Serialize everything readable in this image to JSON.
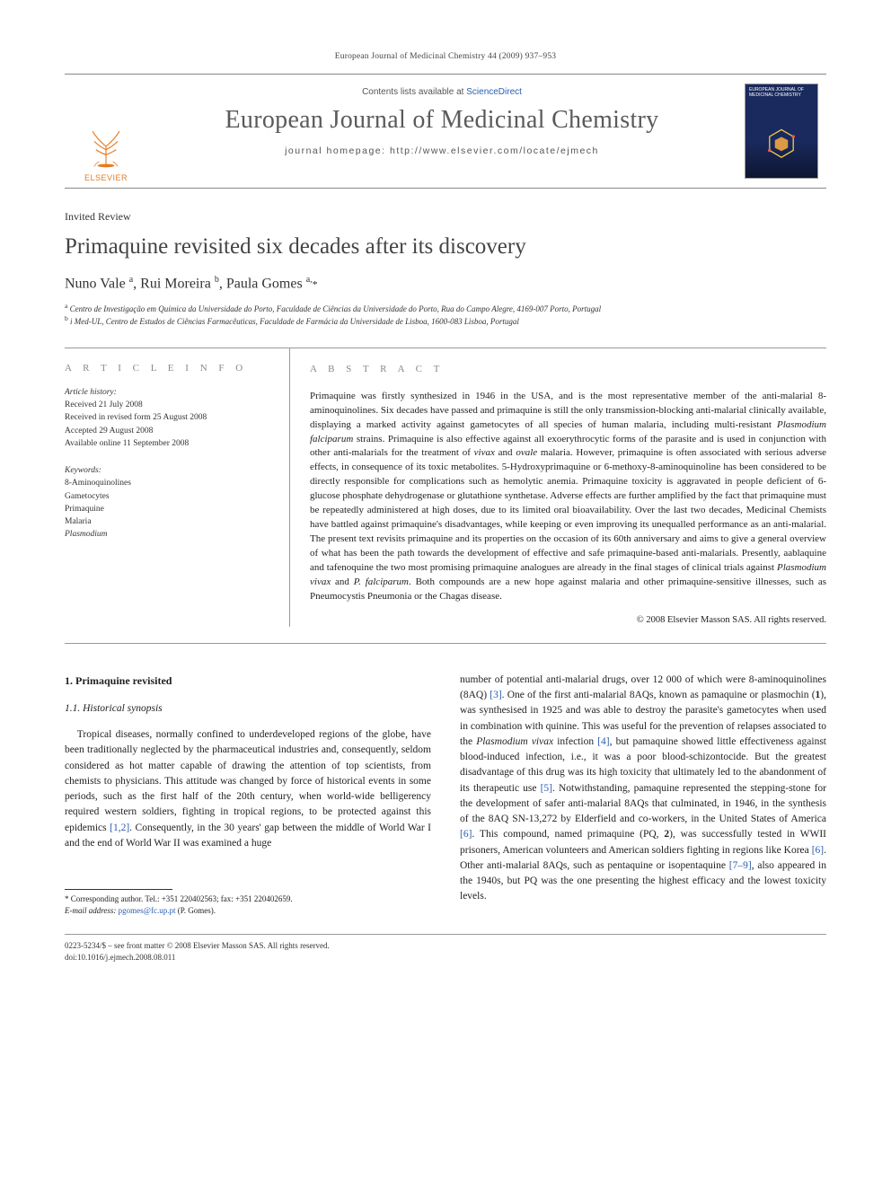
{
  "header": {
    "citation": "European Journal of Medicinal Chemistry 44 (2009) 937–953"
  },
  "masthead": {
    "publisher_label": "ELSEVIER",
    "contents_prefix": "Contents lists available at ",
    "contents_link": "ScienceDirect",
    "journal_name": "European Journal of Medicinal Chemistry",
    "homepage_prefix": "journal homepage: ",
    "homepage_url": "http://www.elsevier.com/locate/ejmech",
    "cover_caption_top": "EUROPEAN JOURNAL OF",
    "cover_caption_bottom": "MEDICINAL CHEMISTRY"
  },
  "article": {
    "type": "Invited Review",
    "title": "Primaquine revisited six decades after its discovery",
    "authors_html": "Nuno Vale <sup>a</sup>, Rui Moreira <sup>b</sup>, Paula Gomes <sup>a,</sup><span class='corr'>*</span>",
    "affiliations": [
      "Centro de Investigação em Química da Universidade do Porto, Faculdade de Ciências da Universidade do Porto, Rua do Campo Alegre, 4169-007 Porto, Portugal",
      "i Med-UL, Centro de Estudos de Ciências Farmacêuticas, Faculdade de Farmácia da Universidade de Lisboa, 1600-083 Lisboa, Portugal"
    ],
    "aff_markers": [
      "a",
      "b"
    ]
  },
  "info": {
    "heading": "A R T I C L E   I N F O",
    "history_label": "Article history:",
    "history": [
      "Received 21 July 2008",
      "Received in revised form 25 August 2008",
      "Accepted 29 August 2008",
      "Available online 11 September 2008"
    ],
    "keywords_label": "Keywords:",
    "keywords": [
      "8-Aminoquinolines",
      "Gametocytes",
      "Primaquine",
      "Malaria",
      "Plasmodium"
    ]
  },
  "abstract": {
    "heading": "A B S T R A C T",
    "text": "Primaquine was firstly synthesized in 1946 in the USA, and is the most representative member of the anti-malarial 8-aminoquinolines. Six decades have passed and primaquine is still the only transmission-blocking anti-malarial clinically available, displaying a marked activity against gametocytes of all species of human malaria, including multi-resistant Plasmodium falciparum strains. Primaquine is also effective against all exoerythrocytic forms of the parasite and is used in conjunction with other anti-malarials for the treatment of vivax and ovale malaria. However, primaquine is often associated with serious adverse effects, in consequence of its toxic metabolites. 5-Hydroxyprimaquine or 6-methoxy-8-aminoquinoline has been considered to be directly responsible for complications such as hemolytic anemia. Primaquine toxicity is aggravated in people deficient of 6-glucose phosphate dehydrogenase or glutathione synthetase. Adverse effects are further amplified by the fact that primaquine must be repeatedly administered at high doses, due to its limited oral bioavailability. Over the last two decades, Medicinal Chemists have battled against primaquine's disadvantages, while keeping or even improving its unequalled performance as an anti-malarial. The present text revisits primaquine and its properties on the occasion of its 60th anniversary and aims to give a general overview of what has been the path towards the development of effective and safe primaquine-based anti-malarials. Presently, aablaquine and tafenoquine the two most promising primaquine analogues are already in the final stages of clinical trials against Plasmodium vivax and P. falciparum. Both compounds are a new hope against malaria and other primaquine-sensitive illnesses, such as Pneumocystis Pneumonia or the Chagas disease.",
    "copyright": "© 2008 Elsevier Masson SAS. All rights reserved."
  },
  "body": {
    "sec1": "1. Primaquine revisited",
    "sec11": "1.1. Historical synopsis",
    "left_para": "Tropical diseases, normally confined to underdeveloped regions of the globe, have been traditionally neglected by the pharmaceutical industries and, consequently, seldom considered as hot matter capable of drawing the attention of top scientists, from chemists to physicians. This attitude was changed by force of historical events in some periods, such as the first half of the 20th century, when world-wide belligerency required western soldiers, fighting in tropical regions, to be protected against this epidemics [1,2]. Consequently, in the 30 years' gap between the middle of World War I and the end of World War II was examined a huge",
    "right_para": "number of potential anti-malarial drugs, over 12 000 of which were 8-aminoquinolines (8AQ) [3]. One of the first anti-malarial 8AQs, known as pamaquine or plasmochin (1), was synthesised in 1925 and was able to destroy the parasite's gametocytes when used in combination with quinine. This was useful for the prevention of relapses associated to the Plasmodium vivax infection [4], but pamaquine showed little effectiveness against blood-induced infection, i.e., it was a poor blood-schizontocide. But the greatest disadvantage of this drug was its high toxicity that ultimately led to the abandonment of its therapeutic use [5]. Notwithstanding, pamaquine represented the stepping-stone for the development of safer anti-malarial 8AQs that culminated, in 1946, in the synthesis of the 8AQ SN-13,272 by Elderfield and co-workers, in the United States of America [6]. This compound, named primaquine (PQ, 2), was successfully tested in WWII prisoners, American volunteers and American soldiers fighting in regions like Korea [6]. Other anti-malarial 8AQs, such as pentaquine or isopentaquine [7–9], also appeared in the 1940s, but PQ was the one presenting the highest efficacy and the lowest toxicity levels."
  },
  "footnote": {
    "corr": "* Corresponding author. Tel.: +351 220402563; fax: +351 220402659.",
    "email_label": "E-mail address:",
    "email": "pgomes@fc.up.pt",
    "email_paren": "(P. Gomes)."
  },
  "footer": {
    "line1": "0223-5234/$ – see front matter © 2008 Elsevier Masson SAS. All rights reserved.",
    "line2": "doi:10.1016/j.ejmech.2008.08.011"
  },
  "colors": {
    "link": "#2a5db0",
    "elsevier_orange": "#e67a1f",
    "rule": "#999999",
    "cover_bg": "#1a2a5e"
  }
}
